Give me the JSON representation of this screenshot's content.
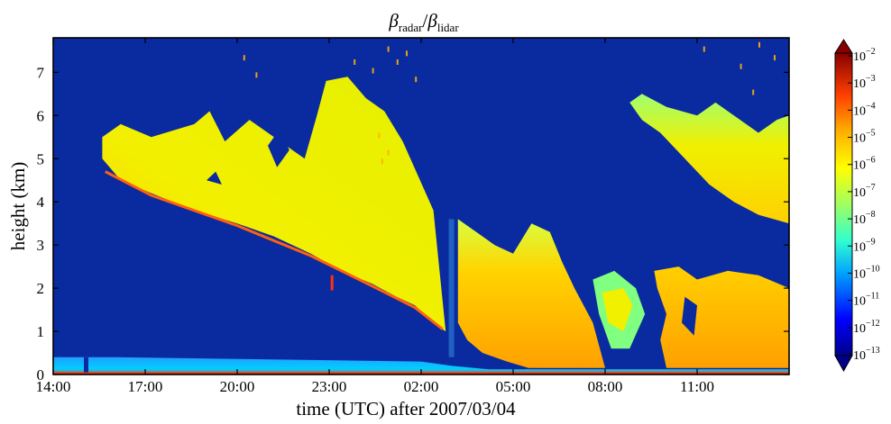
{
  "chart_data": {
    "type": "heatmap",
    "title": {
      "main": "β",
      "sub_num": "radar",
      "slash": "/",
      "main2": "β",
      "sub_den": "lidar"
    },
    "xlabel": "time (UTC) after 2007/03/04",
    "ylabel": "height (km)",
    "x_ticks": [
      "14:00",
      "17:00",
      "20:00",
      "23:00",
      "02:00",
      "05:00",
      "08:00",
      "11:00"
    ],
    "x_tick_hours": [
      0,
      3,
      6,
      9,
      12,
      15,
      18,
      21
    ],
    "xlim_hours": [
      0,
      24
    ],
    "y_ticks": [
      "0",
      "1",
      "2",
      "3",
      "4",
      "5",
      "6",
      "7"
    ],
    "y_tick_values": [
      0,
      1,
      2,
      3,
      4,
      5,
      6,
      7
    ],
    "ylim_km": [
      0,
      7.8
    ],
    "colorbar": {
      "ticks": [
        {
          "base": "10",
          "exp": "−2"
        },
        {
          "base": "10",
          "exp": "−3"
        },
        {
          "base": "10",
          "exp": "−4"
        },
        {
          "base": "10",
          "exp": "−5"
        },
        {
          "base": "10",
          "exp": "−6"
        },
        {
          "base": "10",
          "exp": "−7"
        },
        {
          "base": "10",
          "exp": "−8"
        },
        {
          "base": "10",
          "exp": "−9"
        },
        {
          "base": "10",
          "exp": "−10"
        },
        {
          "base": "10",
          "exp": "−11"
        },
        {
          "base": "10",
          "exp": "−12"
        },
        {
          "base": "10",
          "exp": "−13"
        }
      ],
      "range_log10": [
        -13,
        -2
      ],
      "colormap": [
        "#000080",
        "#0000ff",
        "#00a0ff",
        "#30ffd0",
        "#a0ff60",
        "#ffff00",
        "#ffb000",
        "#ff5000",
        "#d00000",
        "#800000"
      ],
      "extend": "both"
    },
    "background_color": "#0a2aa0",
    "regions": [
      {
        "name": "surface-layer",
        "hours": [
          0,
          24
        ],
        "km": [
          0,
          0.4
        ],
        "level": -9.5
      },
      {
        "name": "cirrus-band-1",
        "hours": [
          1.5,
          12.8
        ],
        "km": [
          0.9,
          6.9
        ],
        "level": -6.0
      },
      {
        "name": "precip-fallstreaks",
        "hours": [
          13.2,
          18.0
        ],
        "km": [
          0,
          3.6
        ],
        "level": -4.5
      },
      {
        "name": "lower-cloud",
        "hours": [
          17.5,
          24
        ],
        "km": [
          0,
          2.4
        ],
        "level": -4.5
      },
      {
        "name": "cirrus-band-2",
        "hours": [
          18.8,
          24
        ],
        "km": [
          3.5,
          6.4
        ],
        "level": -6.0
      }
    ]
  }
}
